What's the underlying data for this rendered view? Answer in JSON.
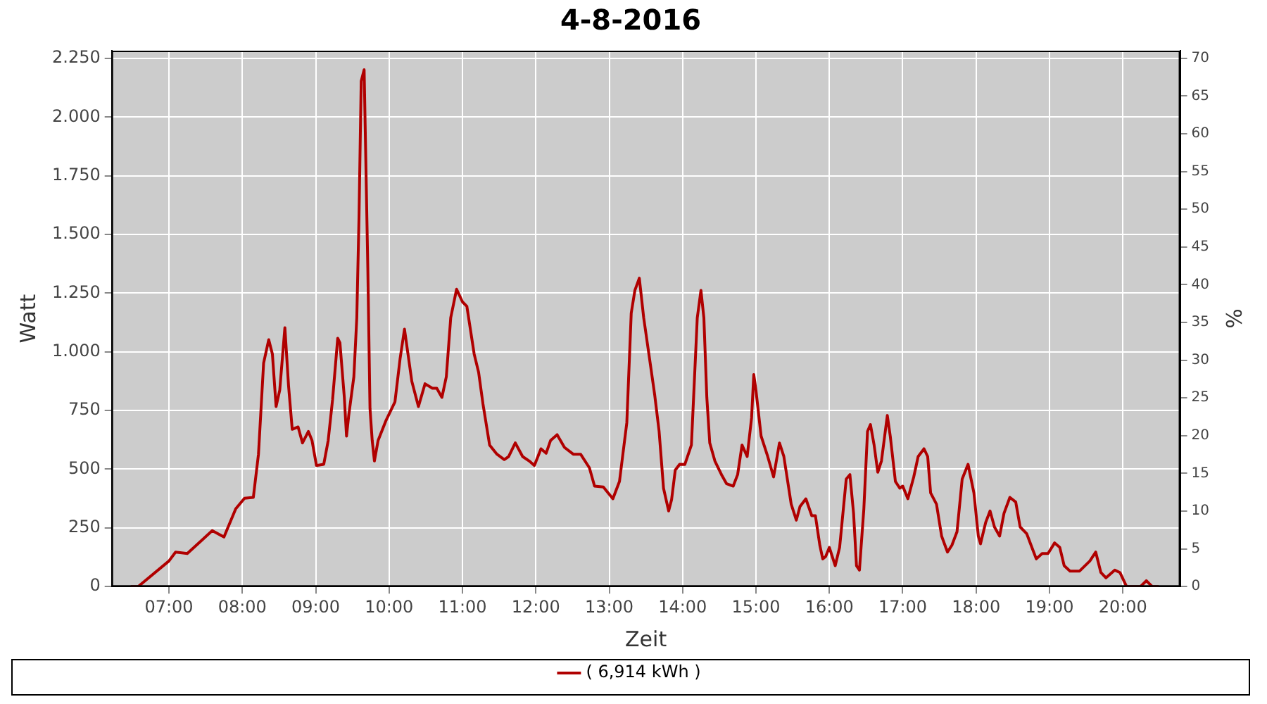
{
  "chart_data": {
    "type": "line",
    "title": "4-8-2016",
    "xlabel": "Zeit",
    "ylabel": "Watt",
    "y2label": "%",
    "xlim": [
      6.22,
      20.78
    ],
    "xticks": [
      {
        "value": 7,
        "label": "07:00"
      },
      {
        "value": 8,
        "label": "08:00"
      },
      {
        "value": 9,
        "label": "09:00"
      },
      {
        "value": 10,
        "label": "10:00"
      },
      {
        "value": 11,
        "label": "11:00"
      },
      {
        "value": 12,
        "label": "12:00"
      },
      {
        "value": 13,
        "label": "13:00"
      },
      {
        "value": 14,
        "label": "14:00"
      },
      {
        "value": 15,
        "label": "15:00"
      },
      {
        "value": 16,
        "label": "16:00"
      },
      {
        "value": 17,
        "label": "17:00"
      },
      {
        "value": 18,
        "label": "18:00"
      },
      {
        "value": 19,
        "label": "19:00"
      },
      {
        "value": 20,
        "label": "20:00"
      }
    ],
    "ylim": [
      0,
      2283
    ],
    "yticks": [
      0,
      {
        "value": 250,
        "label": "250"
      },
      {
        "value": 500,
        "label": "500"
      },
      {
        "value": 750,
        "label": "750"
      },
      {
        "value": 1000,
        "label": "1.000"
      },
      {
        "value": 1250,
        "label": "1.250"
      },
      {
        "value": 1500,
        "label": "1.500"
      },
      {
        "value": 1750,
        "label": "1.750"
      },
      {
        "value": 2000,
        "label": "2.000"
      },
      {
        "value": 2250,
        "label": "2.250"
      }
    ],
    "y2lim": [
      0,
      71.0
    ],
    "y2ticks": [
      0,
      5,
      10,
      15,
      20,
      25,
      30,
      35,
      40,
      45,
      50,
      55,
      60,
      65,
      70
    ],
    "grid": true,
    "legend": "bottom",
    "marker": "none",
    "series": [
      {
        "name": "( 6,914 kWh )",
        "color": "#b00000",
        "x": [
          6.48,
          6.58,
          7.0,
          7.09,
          7.25,
          7.59,
          7.75,
          7.91,
          8.03,
          8.15,
          8.22,
          8.29,
          8.36,
          8.41,
          8.46,
          8.51,
          8.58,
          8.63,
          8.68,
          8.76,
          8.82,
          8.9,
          8.95,
          9.01,
          9.11,
          9.17,
          9.23,
          9.3,
          9.33,
          9.39,
          9.42,
          9.45,
          9.52,
          9.56,
          9.59,
          9.62,
          9.66,
          9.71,
          9.74,
          9.77,
          9.8,
          9.85,
          9.96,
          10.08,
          10.15,
          10.21,
          10.31,
          10.4,
          10.49,
          10.59,
          10.65,
          10.72,
          10.78,
          10.84,
          10.92,
          11.0,
          11.06,
          11.16,
          11.22,
          11.28,
          11.37,
          11.47,
          11.57,
          11.63,
          11.72,
          11.82,
          11.91,
          11.98,
          12.07,
          12.14,
          12.2,
          12.29,
          12.39,
          12.51,
          12.61,
          12.73,
          12.8,
          12.92,
          13.05,
          13.14,
          13.24,
          13.3,
          13.35,
          13.41,
          13.47,
          13.55,
          13.62,
          13.68,
          13.74,
          13.81,
          13.85,
          13.9,
          13.96,
          14.03,
          14.12,
          14.15,
          14.2,
          14.25,
          14.29,
          14.33,
          14.37,
          14.44,
          14.53,
          14.6,
          14.69,
          14.75,
          14.81,
          14.88,
          14.94,
          14.97,
          15.0,
          15.07,
          15.16,
          15.24,
          15.32,
          15.38,
          15.48,
          15.55,
          15.6,
          15.68,
          15.76,
          15.81,
          15.87,
          15.91,
          15.95,
          16.0,
          16.08,
          16.14,
          16.23,
          16.28,
          16.33,
          16.37,
          16.41,
          16.47,
          16.52,
          16.56,
          16.61,
          16.66,
          16.71,
          16.79,
          16.83,
          16.9,
          16.96,
          17.0,
          17.07,
          17.15,
          17.21,
          17.29,
          17.34,
          17.38,
          17.46,
          17.53,
          17.61,
          17.67,
          17.74,
          17.81,
          17.89,
          17.97,
          18.03,
          18.06,
          18.13,
          18.19,
          18.25,
          18.32,
          18.38,
          18.46,
          18.54,
          18.6,
          18.69,
          18.76,
          18.82,
          18.9,
          18.98,
          19.07,
          19.14,
          19.2,
          19.28,
          19.41,
          19.55,
          19.63,
          19.7,
          19.77,
          19.89,
          19.96,
          20.05,
          20.24,
          20.32,
          20.4,
          20.49
        ],
        "values": [
          0,
          0,
          109,
          147,
          141,
          238,
          211,
          331,
          376,
          380,
          564,
          952,
          1052,
          990,
          767,
          837,
          1103,
          855,
          670,
          680,
          612,
          661,
          622,
          516,
          521,
          622,
          797,
          1058,
          1039,
          806,
          641,
          729,
          894,
          1145,
          1572,
          2153,
          2202,
          1359,
          758,
          622,
          535,
          622,
          709,
          787,
          971,
          1097,
          874,
          767,
          864,
          845,
          845,
          806,
          894,
          1145,
          1267,
          1213,
          1194,
          990,
          913,
          777,
          603,
          564,
          541,
          554,
          612,
          554,
          535,
          516,
          587,
          568,
          622,
          647,
          593,
          564,
          564,
          506,
          428,
          424,
          374,
          448,
          699,
          1165,
          1262,
          1314,
          1145,
          970,
          816,
          661,
          419,
          322,
          370,
          496,
          521,
          520,
          603,
          806,
          1145,
          1262,
          1145,
          806,
          612,
          535,
          477,
          438,
          428,
          477,
          603,
          554,
          719,
          903,
          835,
          641,
          554,
          467,
          612,
          554,
          351,
          283,
          341,
          374,
          302,
          302,
          176,
          118,
          128,
          167,
          89,
          167,
          458,
          477,
          312,
          89,
          70,
          331,
          661,
          690,
          603,
          487,
          535,
          729,
          641,
          448,
          419,
          428,
          374,
          467,
          554,
          587,
          554,
          399,
          351,
          215,
          147,
          176,
          234,
          458,
          521,
          399,
          215,
          182,
          273,
          322,
          254,
          215,
          312,
          380,
          360,
          254,
          225,
          167,
          118,
          141,
          141,
          186,
          167,
          89,
          66,
          66,
          109,
          147,
          60,
          37,
          70,
          60,
          0,
          0,
          25,
          0,
          0
        ]
      }
    ]
  }
}
